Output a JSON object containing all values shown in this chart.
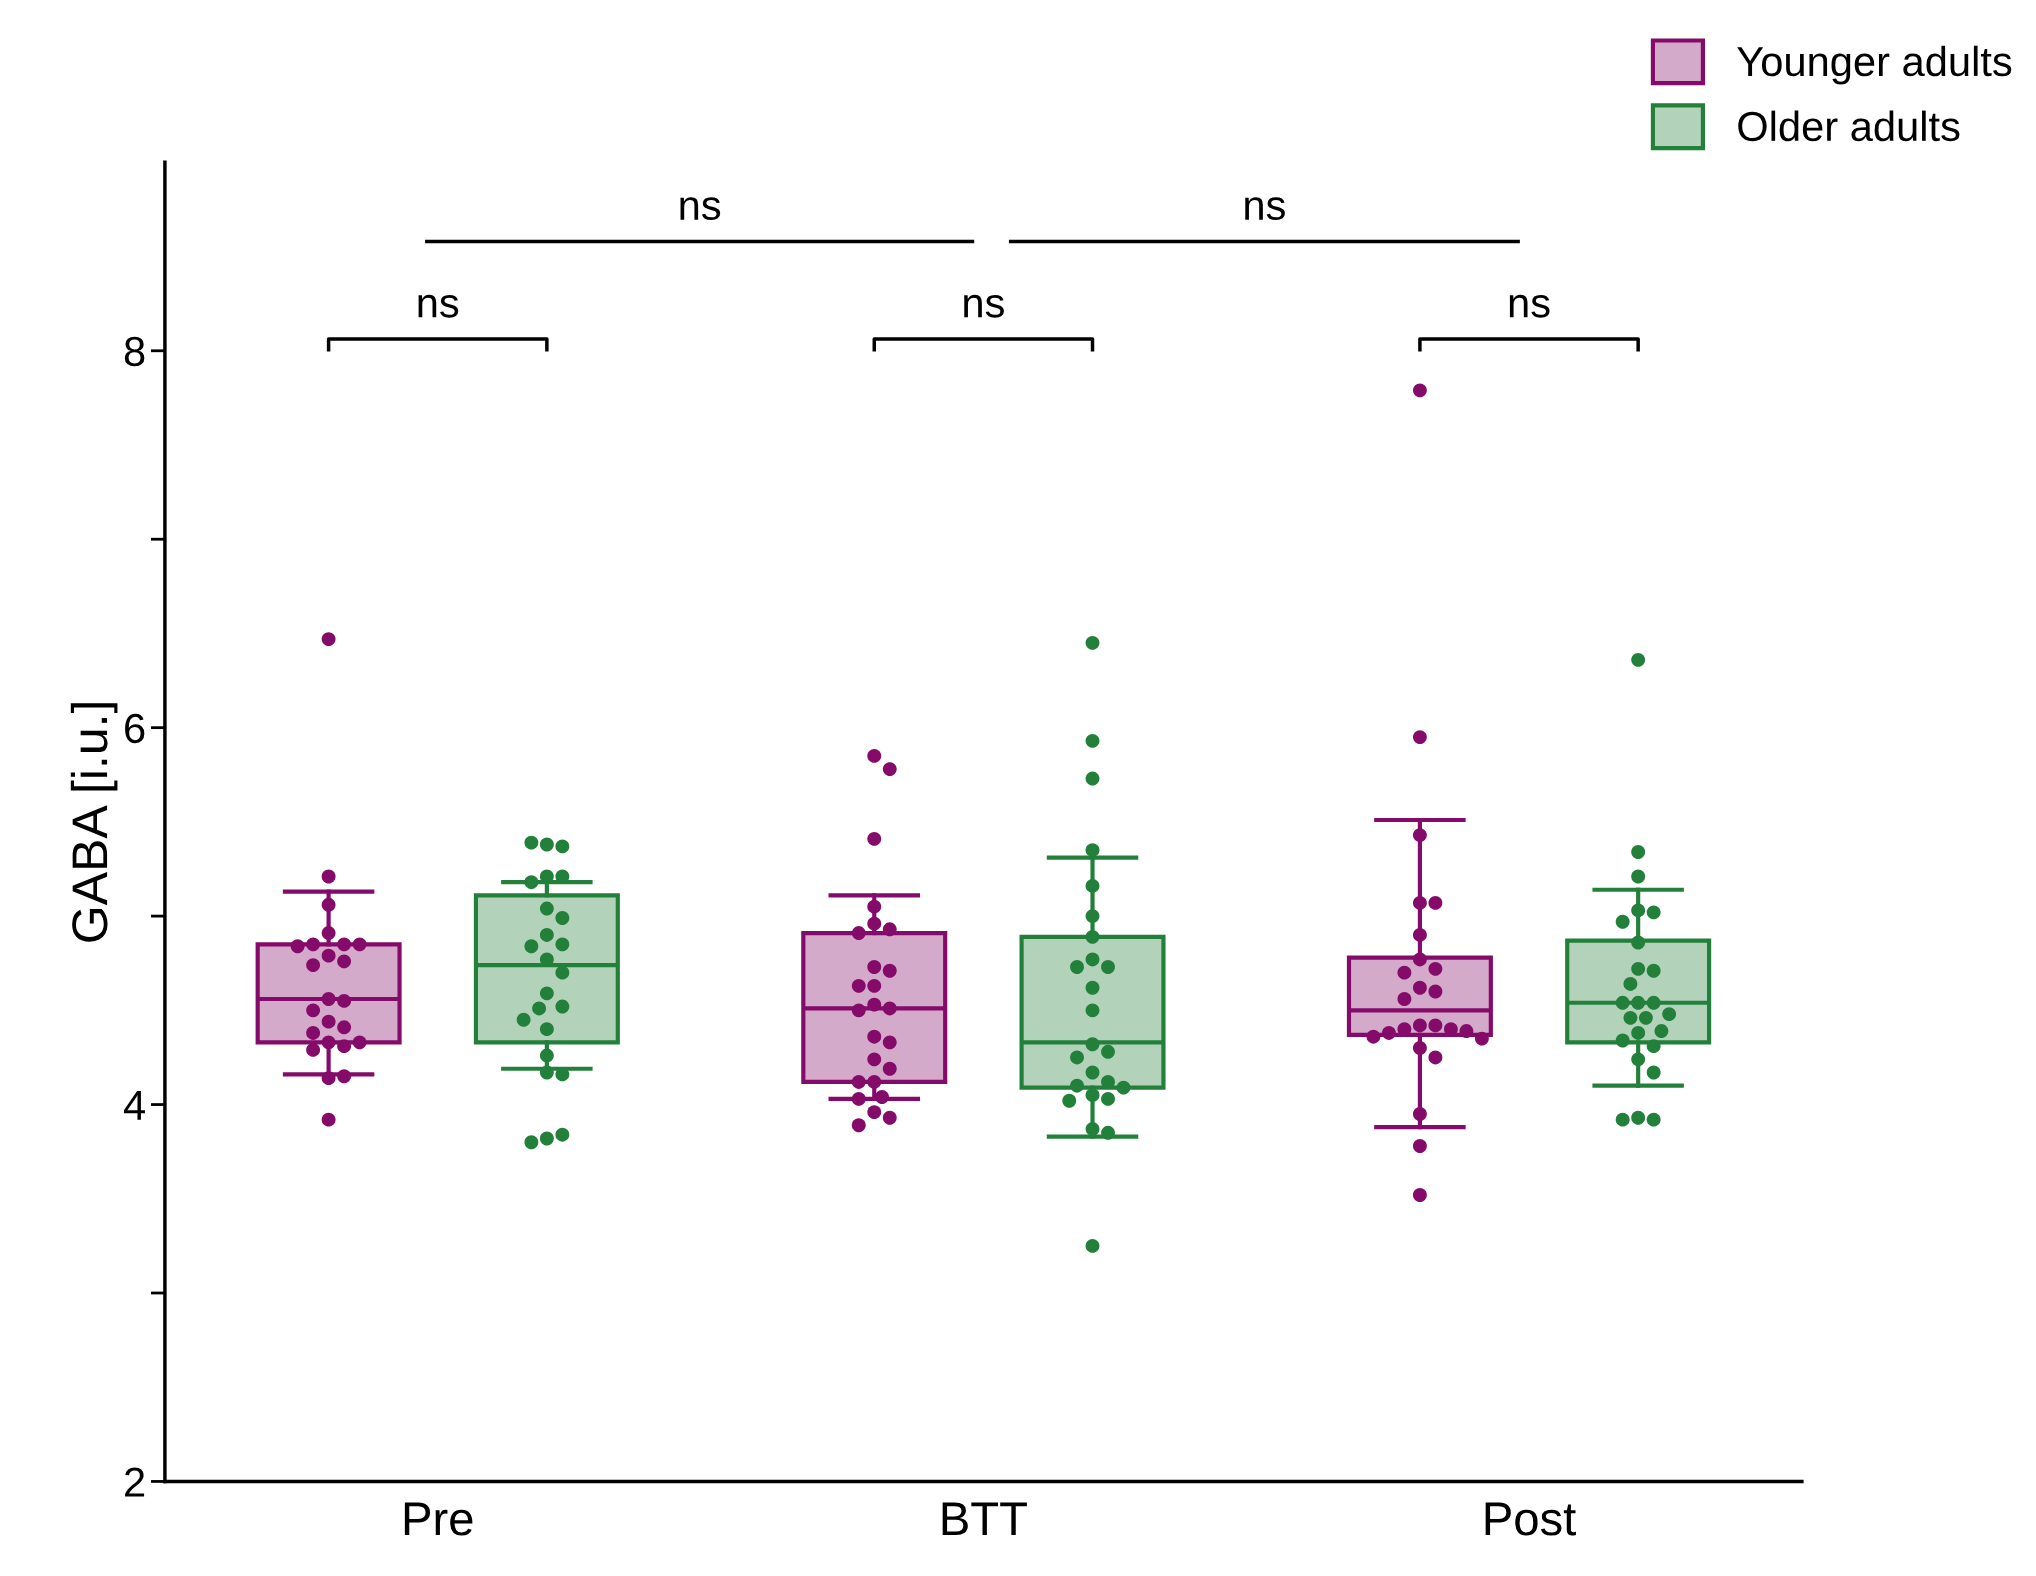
{
  "chart_data": {
    "type": "box",
    "categories": [
      "Pre",
      "BTT",
      "Post"
    ],
    "ylabel": "GABA [i.u.]",
    "ylim": [
      2,
      9
    ],
    "yticks": [
      2,
      {
        "value": 3,
        "label": null
      },
      4,
      {
        "value": 5,
        "label": null
      },
      6,
      {
        "value": 7,
        "label": null
      },
      8
    ],
    "grid": false,
    "legend": "top right",
    "annotations": [
      "ns",
      "ns",
      "ns",
      "ns",
      "ns"
    ],
    "series": [
      {
        "name": "Younger adults",
        "color": "#850b6b",
        "boxes": [
          {
            "low": 4.16,
            "q1": 4.33,
            "median": 4.56,
            "q3": 4.85,
            "high": 5.13
          },
          {
            "low": 4.03,
            "q1": 4.12,
            "median": 4.51,
            "q3": 4.91,
            "high": 5.11
          },
          {
            "low": 3.88,
            "q1": 4.37,
            "median": 4.5,
            "q3": 4.78,
            "high": 5.51
          }
        ]
      },
      {
        "name": "Older adults",
        "color": "#22803a",
        "boxes": [
          {
            "low": 4.19,
            "q1": 4.33,
            "median": 4.74,
            "q3": 5.11,
            "high": 5.18
          },
          {
            "low": 3.83,
            "q1": 4.09,
            "median": 4.33,
            "q3": 4.89,
            "high": 5.31
          },
          {
            "low": 4.1,
            "q1": 4.33,
            "median": 4.54,
            "q3": 4.87,
            "high": 5.14
          }
        ]
      },
      {
        "type": "scatter",
        "color": "#850b6b",
        "x": [
          "Pre",
          "Pre",
          "Pre",
          "Pre",
          "Pre",
          "Pre",
          "Pre",
          "Pre",
          "Pre",
          "Pre",
          "Pre",
          "Pre",
          "Pre",
          "Pre",
          "Pre",
          "Pre",
          "Pre",
          "Pre",
          "Pre",
          "Pre",
          "Pre",
          "Pre",
          "Pre",
          "Pre",
          "BTT",
          "BTT",
          "BTT",
          "BTT",
          "BTT",
          "BTT",
          "BTT",
          "BTT",
          "BTT",
          "BTT",
          "BTT",
          "BTT",
          "BTT",
          "BTT",
          "BTT",
          "BTT",
          "BTT",
          "BTT",
          "BTT",
          "BTT",
          "BTT",
          "BTT",
          "BTT",
          "BTT",
          "BTT",
          "Post",
          "Post",
          "Post",
          "Post",
          "Post",
          "Post",
          "Post",
          "Post",
          "Post",
          "Post",
          "Post",
          "Post",
          "Post",
          "Post",
          "Post",
          "Post",
          "Post",
          "Post",
          "Post",
          "Post",
          "Post",
          "Post",
          "Post",
          "Post",
          "Post"
        ],
        "values": [
          6.47,
          3.92,
          5.21,
          5.06,
          4.91,
          4.85,
          4.85,
          4.85,
          4.84,
          4.79,
          4.76,
          4.74,
          4.56,
          4.55,
          4.5,
          4.44,
          4.41,
          4.38,
          4.33,
          4.31,
          4.29,
          4.33,
          4.14,
          4.15,
          5.85,
          5.78,
          5.41,
          5.05,
          4.96,
          4.93,
          4.91,
          4.73,
          4.71,
          4.63,
          4.63,
          4.53,
          4.51,
          4.5,
          4.36,
          4.33,
          4.24,
          4.19,
          4.12,
          4.12,
          4.04,
          3.96,
          3.93,
          3.89,
          4.03,
          7.79,
          5.95,
          5.43,
          5.07,
          5.07,
          4.9,
          4.77,
          4.72,
          4.7,
          4.62,
          4.6,
          4.56,
          4.42,
          4.42,
          4.4,
          4.4,
          4.38,
          4.39,
          4.36,
          4.35,
          4.3,
          4.25,
          3.95,
          3.78,
          3.52
        ]
      },
      {
        "type": "scatter",
        "color": "#22803a",
        "x": [
          "Pre",
          "Pre",
          "Pre",
          "Pre",
          "Pre",
          "Pre",
          "Pre",
          "Pre",
          "Pre",
          "Pre",
          "Pre",
          "Pre",
          "Pre",
          "Pre",
          "Pre",
          "Pre",
          "Pre",
          "Pre",
          "Pre",
          "Pre",
          "Pre",
          "Pre",
          "Pre",
          "Pre",
          "BTT",
          "BTT",
          "BTT",
          "BTT",
          "BTT",
          "BTT",
          "BTT",
          "BTT",
          "BTT",
          "BTT",
          "BTT",
          "BTT",
          "BTT",
          "BTT",
          "BTT",
          "BTT",
          "BTT",
          "BTT",
          "BTT",
          "BTT",
          "BTT",
          "BTT",
          "BTT",
          "BTT",
          "BTT",
          "Post",
          "Post",
          "Post",
          "Post",
          "Post",
          "Post",
          "Post",
          "Post",
          "Post",
          "Post",
          "Post",
          "Post",
          "Post",
          "Post",
          "Post",
          "Post",
          "Post",
          "Post",
          "Post",
          "Post",
          "Post",
          "Post",
          "Post",
          "Post",
          "Post"
        ],
        "values": [
          5.38,
          5.37,
          5.39,
          5.21,
          5.21,
          5.18,
          5.04,
          4.99,
          4.9,
          4.85,
          4.84,
          4.77,
          4.7,
          4.59,
          4.52,
          4.51,
          4.45,
          4.4,
          4.26,
          4.17,
          4.16,
          3.82,
          3.84,
          3.8,
          6.45,
          5.93,
          5.73,
          5.35,
          5.16,
          5.0,
          4.89,
          4.77,
          4.73,
          4.73,
          4.62,
          4.5,
          4.32,
          4.28,
          4.25,
          4.17,
          4.12,
          4.1,
          4.09,
          4.05,
          4.03,
          4.02,
          3.87,
          3.85,
          3.25,
          6.36,
          5.34,
          5.21,
          5.03,
          5.02,
          4.97,
          4.86,
          4.72,
          4.71,
          4.64,
          4.54,
          4.54,
          4.54,
          4.48,
          4.46,
          4.46,
          4.39,
          4.38,
          4.34,
          4.31,
          4.24,
          4.17,
          3.93,
          3.92,
          3.92
        ]
      }
    ]
  }
}
